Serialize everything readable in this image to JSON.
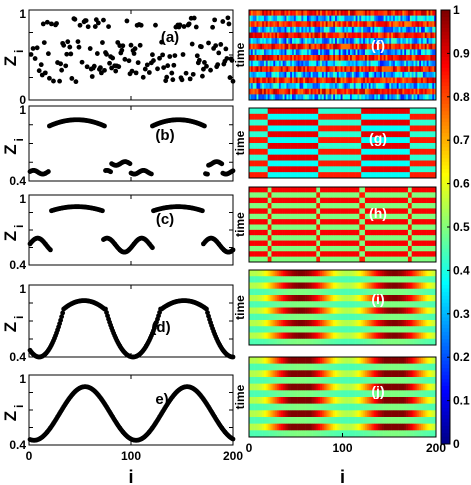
{
  "chart_data": [
    {
      "type": "scatter",
      "panel": "a",
      "label": "(a)",
      "ylabel": "Z",
      "ylabel_sub": "i",
      "xlim": [
        0,
        200
      ],
      "ylim": [
        0,
        1
      ],
      "yticks": [
        "0",
        "1"
      ],
      "xticks": [],
      "pattern": "random",
      "low": [
        0.2,
        0.65
      ],
      "high": [
        0.8,
        0.92
      ]
    },
    {
      "type": "scatter",
      "panel": "b",
      "label": "(b)",
      "ylabel": "Z",
      "ylabel_sub": "i",
      "xlim": [
        0,
        200
      ],
      "ylim": [
        0.4,
        1
      ],
      "yticks": [
        "0.4",
        "1"
      ],
      "xticks": [],
      "pattern": "plateau-flat",
      "high": 0.89,
      "low": 0.47
    },
    {
      "type": "scatter",
      "panel": "c",
      "label": "(c)",
      "ylabel": "Z",
      "ylabel_sub": "i",
      "xlim": [
        0,
        200
      ],
      "ylim": [
        0.4,
        1
      ],
      "yticks": [
        "0.4",
        "1"
      ],
      "xticks": [],
      "pattern": "plateau-wave",
      "high": 0.9,
      "low": 0.55
    },
    {
      "type": "scatter",
      "panel": "d",
      "label": "(d)",
      "ylabel": "Z",
      "ylabel_sub": "i",
      "xlim": [
        0,
        200
      ],
      "ylim": [
        0.4,
        1
      ],
      "yticks": [
        "0.4",
        "1"
      ],
      "xticks": [],
      "pattern": "dome-valley",
      "high": 0.87,
      "low": 0.4
    },
    {
      "type": "scatter",
      "panel": "e",
      "label": "e)",
      "ylabel": "Z",
      "ylabel_sub": "i",
      "xlabel": "i",
      "xlim": [
        0,
        200
      ],
      "ylim": [
        0.4,
        1
      ],
      "yticks": [
        "0.4",
        "1"
      ],
      "xticks": [
        "0",
        "100",
        "200"
      ],
      "pattern": "smooth",
      "high": 0.9,
      "low": 0.44
    },
    {
      "type": "heatmap",
      "panel": "f",
      "label": "(f)",
      "ylabel": "time",
      "xticks": [],
      "pattern": "random"
    },
    {
      "type": "heatmap",
      "panel": "g",
      "label": "(g)",
      "ylabel": "time",
      "xticks": [],
      "pattern": "chimera-strong"
    },
    {
      "type": "heatmap",
      "panel": "h",
      "label": "(h)",
      "ylabel": "time",
      "xticks": [],
      "pattern": "chimera-weak"
    },
    {
      "type": "heatmap",
      "panel": "i",
      "label": "(i)",
      "ylabel": "time",
      "xticks": [],
      "pattern": "smooth"
    },
    {
      "type": "heatmap",
      "panel": "j",
      "label": "(j)",
      "ylabel": "time",
      "xlabel": "i",
      "xlim": [
        0,
        200
      ],
      "xticks": [
        "0",
        "100",
        "200"
      ],
      "pattern": "smooth-wide"
    },
    {
      "type": "colorbar",
      "range": [
        0,
        1
      ],
      "ticks": [
        "0",
        "0.1",
        "0.2",
        "0.3",
        "0.4",
        "0.5",
        "0.6",
        "0.7",
        "0.8",
        "0.9",
        "1"
      ]
    }
  ]
}
